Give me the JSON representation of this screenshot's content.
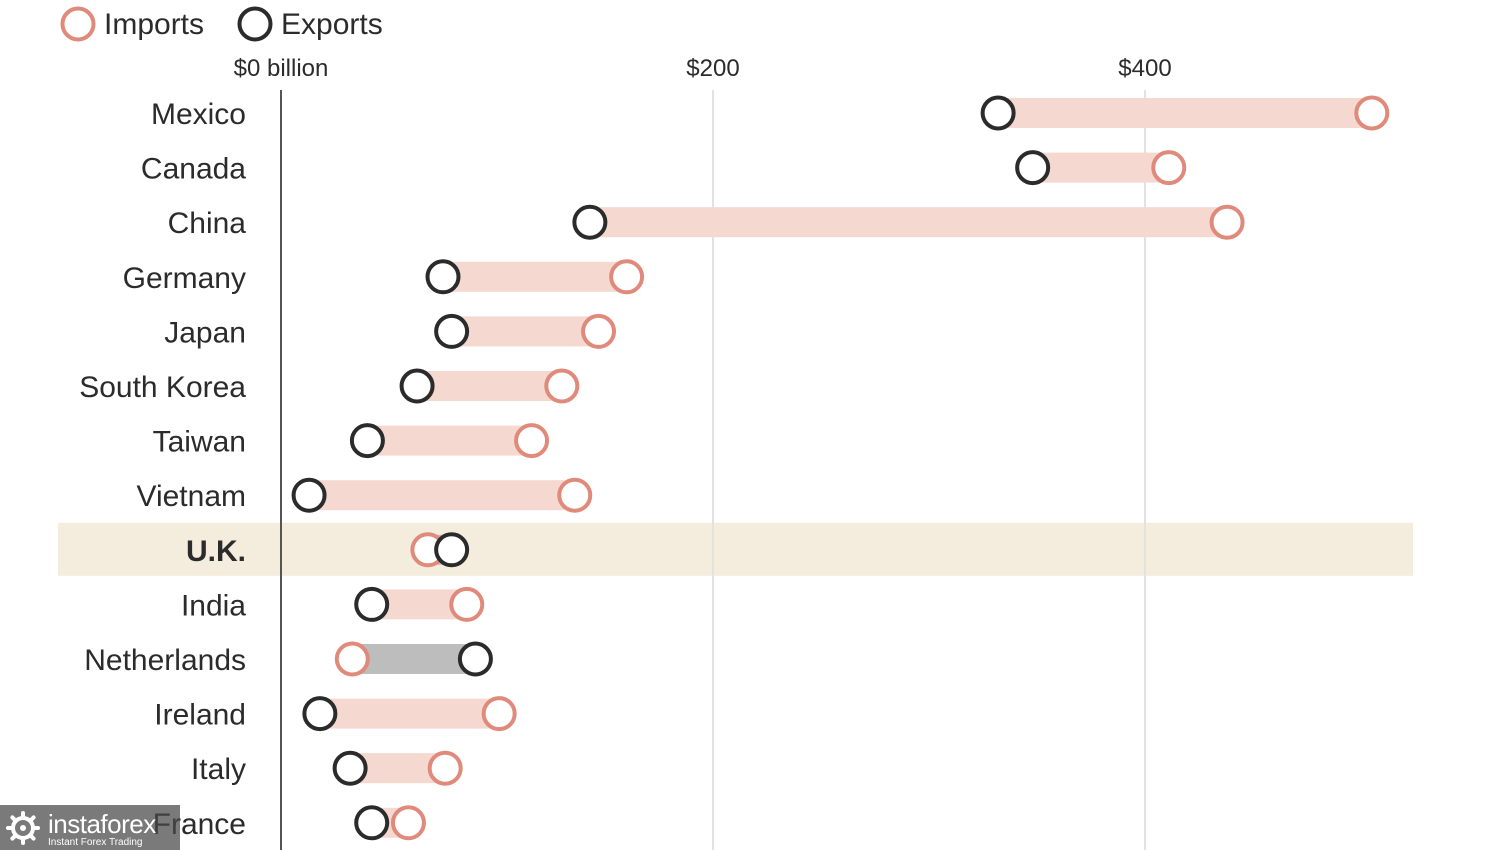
{
  "chart_data": {
    "type": "dumbbell",
    "legend": {
      "position": "top-left",
      "entries": [
        {
          "label": "Imports",
          "color": "#e08a7c"
        },
        {
          "label": "Exports",
          "color": "#2b2b2b"
        }
      ]
    },
    "x_axis": {
      "range": [
        0,
        520
      ],
      "ticks": [
        {
          "value": 0,
          "label": "$0 billion"
        },
        {
          "value": 200,
          "label": "$200"
        },
        {
          "value": 400,
          "label": "$400"
        }
      ],
      "grid": true,
      "position": "top"
    },
    "series": [
      {
        "name": "Imports",
        "key": "imports"
      },
      {
        "name": "Exports",
        "key": "exports"
      }
    ],
    "categories": [
      "Mexico",
      "Canada",
      "China",
      "Germany",
      "Japan",
      "South Korea",
      "Taiwan",
      "Vietnam",
      "U.K.",
      "India",
      "Netherlands",
      "Ireland",
      "Italy",
      "France"
    ],
    "imports": [
      505,
      411,
      438,
      160,
      147,
      130,
      116,
      136,
      68,
      86,
      33,
      101,
      76,
      59
    ],
    "exports": [
      332,
      348,
      143,
      75,
      79,
      63,
      40,
      13,
      79,
      42,
      90,
      18,
      32,
      42
    ],
    "highlight": "U.K.",
    "colors": {
      "import_ring": "#e08a7c",
      "export_ring": "#2b2b2b",
      "deficit_bar": "#f5d9d1",
      "surplus_bar": "#bdbdbd",
      "highlight_band": "#f4ecdc",
      "gridline": "#e2e2e2",
      "baseline": "#555555",
      "text": "#2b2b2b"
    }
  },
  "watermark": {
    "name": "instaforex",
    "tagline": "Instant Forex Trading",
    "icon": "gear-icon"
  }
}
